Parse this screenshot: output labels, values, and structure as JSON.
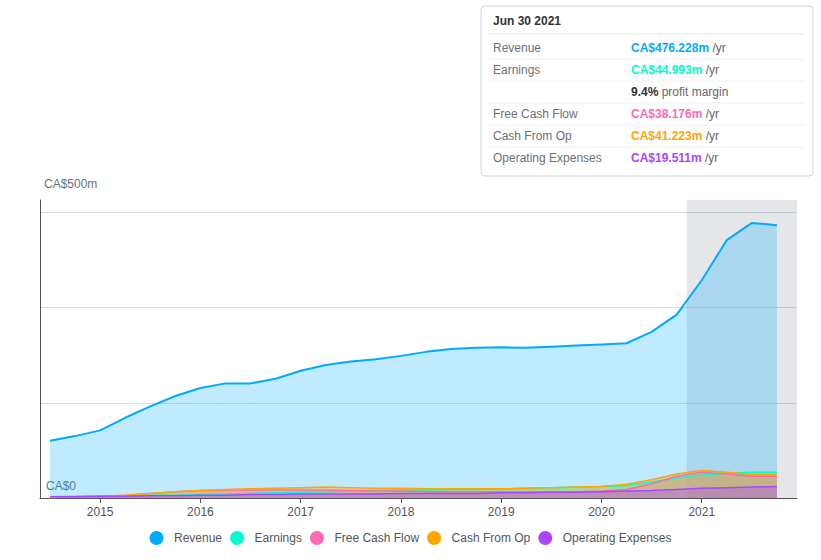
{
  "chart_data": {
    "type": "area",
    "x": [
      2014.5,
      2014.75,
      2015.0,
      2015.25,
      2015.5,
      2015.75,
      2016.0,
      2016.25,
      2016.5,
      2016.75,
      2017.0,
      2017.25,
      2017.5,
      2017.75,
      2018.0,
      2018.25,
      2018.5,
      2018.75,
      2019.0,
      2019.25,
      2019.5,
      2019.75,
      2020.0,
      2020.25,
      2020.5,
      2020.75,
      2021.0,
      2021.25,
      2021.5,
      2021.75
    ],
    "series": [
      {
        "name": "Revenue",
        "color": "#00aaff",
        "values": [
          100,
          108,
          118,
          140,
          160,
          178,
          192,
          200,
          200,
          208,
          222,
          232,
          238,
          242,
          248,
          255,
          260,
          262,
          263,
          262,
          264,
          266,
          268,
          270,
          290,
          320,
          380,
          450,
          480,
          476
        ]
      },
      {
        "name": "Earnings",
        "color": "#00ffcc",
        "values": [
          2,
          3,
          3,
          4,
          5,
          5,
          6,
          7,
          8,
          9,
          10,
          11,
          12,
          13,
          14,
          14,
          15,
          15,
          16,
          17,
          18,
          19,
          20,
          22,
          28,
          35,
          40,
          43,
          45,
          45
        ]
      },
      {
        "name": "Free Cash Flow",
        "color": "#ff69b4",
        "values": [
          1,
          2,
          3,
          5,
          8,
          11,
          13,
          14,
          14,
          14,
          14,
          14,
          13,
          12,
          12,
          11,
          11,
          11,
          11,
          11,
          11,
          11,
          12,
          15,
          25,
          38,
          45,
          42,
          38,
          38
        ]
      },
      {
        "name": "Cash From Op",
        "color": "#ffa500",
        "values": [
          1,
          2,
          3,
          5,
          8,
          11,
          13,
          15,
          16,
          17,
          18,
          19,
          18,
          17,
          17,
          16,
          16,
          16,
          16,
          17,
          18,
          19,
          20,
          24,
          32,
          42,
          48,
          45,
          41,
          41
        ]
      },
      {
        "name": "Operating Expenses",
        "color": "#aa44ff",
        "values": [
          2,
          2,
          3,
          3,
          4,
          4,
          5,
          5,
          6,
          6,
          7,
          7,
          7,
          7,
          8,
          8,
          8,
          8,
          9,
          9,
          10,
          10,
          11,
          12,
          13,
          15,
          17,
          18,
          19,
          20
        ]
      }
    ],
    "xlim": [
      2014.4,
      2021.95
    ],
    "xticks": [
      2015,
      2016,
      2017,
      2018,
      2019,
      2020,
      2021
    ],
    "ylim": [
      0,
      520
    ],
    "yticks": [
      0,
      166,
      332,
      498
    ],
    "tick_labels": "x",
    "grid": true,
    "legend": "bottom",
    "highlight_x": [
      2020.85,
      2021.95
    ],
    "annotations": [
      "CA$500m",
      "CA$0"
    ],
    "annotation_box": {
      "title": "Jun 30 2021",
      "rows": [
        {
          "label": "Revenue",
          "value": "CA$476.228m /yr"
        },
        {
          "label": "Earnings",
          "value": "CA$44.993m /yr"
        },
        {
          "label": null,
          "value": "9.4% profit margin"
        },
        {
          "label": "Free Cash Flow",
          "value": "CA$38.176m /yr"
        },
        {
          "label": "Cash From Op",
          "value": "CA$41.223m /yr"
        },
        {
          "label": "Operating Expenses",
          "value": "CA$19.511m /yr"
        }
      ]
    }
  }
}
